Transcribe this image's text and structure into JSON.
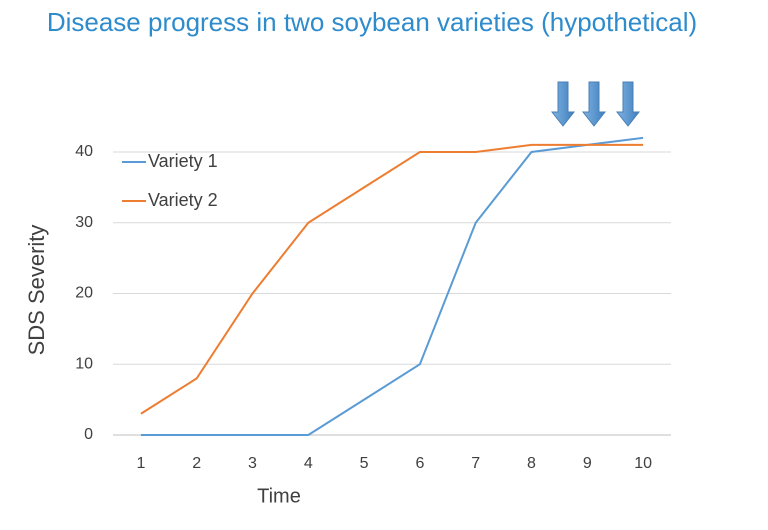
{
  "chart_data": {
    "type": "line",
    "title": "Disease progress in two soybean varieties (hypothetical)",
    "categories": [
      "1",
      "2",
      "3",
      "4",
      "5",
      "6",
      "7",
      "8",
      "9",
      "10"
    ],
    "series": [
      {
        "name": "Variety 1",
        "color": "#5b9bd5",
        "values": [
          0,
          0,
          0,
          0,
          5,
          10,
          30,
          40,
          41,
          42
        ]
      },
      {
        "name": "Variety 2",
        "color": "#ed7d31",
        "values": [
          3,
          8,
          20,
          30,
          35,
          40,
          40,
          41,
          41,
          41
        ]
      }
    ],
    "x_label": "Time",
    "y_label": "SDS Severity",
    "ylim": [
      0,
      40
    ],
    "yticks": [
      0,
      10,
      20,
      30,
      40
    ],
    "grid": true,
    "legend": "top-left"
  }
}
